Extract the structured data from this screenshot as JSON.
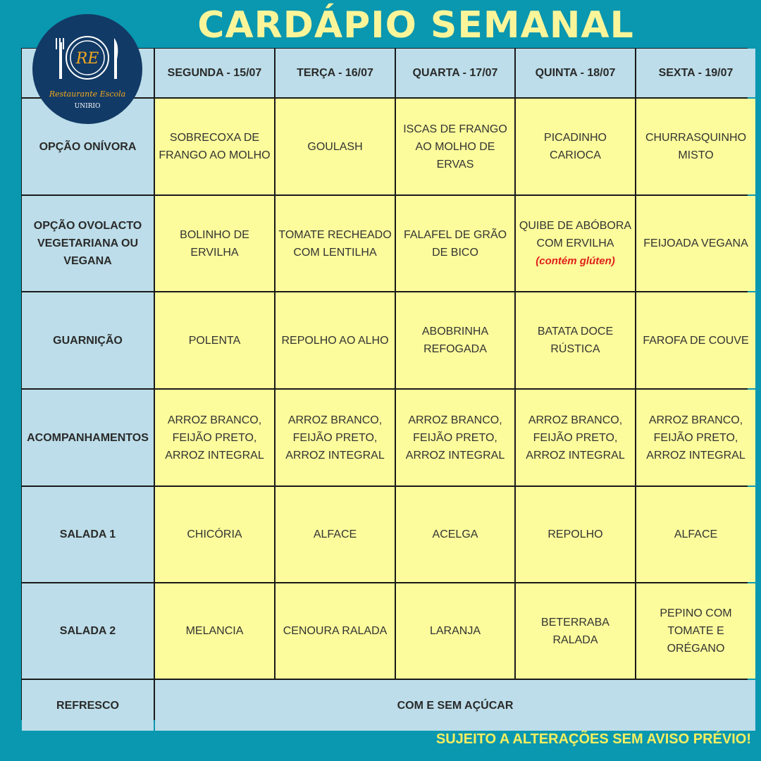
{
  "title": "CARDÁPIO SEMANAL",
  "logo": {
    "initials": "RE",
    "name": "Restaurante Escola",
    "org": "UNIRIO"
  },
  "days": [
    "SEGUNDA - 15/07",
    "TERÇA - 16/07",
    "QUARTA - 17/07",
    "QUINTA - 18/07",
    "SEXTA - 19/07"
  ],
  "rows": [
    {
      "label": "OPÇÃO ONÍVORA",
      "items": [
        "SOBRECOXA DE FRANGO AO MOLHO",
        "GOULASH",
        "ISCAS DE FRANGO AO MOLHO DE ERVAS",
        "PICADINHO CARIOCA",
        "CHURRASQUINHO MISTO"
      ]
    },
    {
      "label": "OPÇÃO OVOLACTO VEGETARIANA OU VEGANA",
      "items": [
        "BOLINHO DE ERVILHA",
        "TOMATE RECHEADO COM LENTILHA",
        "FALAFEL DE GRÃO DE BICO",
        "QUIBE DE ABÓBORA COM ERVILHA",
        "FEIJOADA VEGANA"
      ],
      "note": "(contém glúten)"
    },
    {
      "label": "GUARNIÇÃO",
      "items": [
        "POLENTA",
        "REPOLHO AO ALHO",
        "ABOBRINHA REFOGADA",
        "BATATA DOCE RÚSTICA",
        "FAROFA DE COUVE"
      ]
    },
    {
      "label": "ACOMPANHAMENTOS",
      "items": [
        "ARROZ BRANCO, FEIJÃO PRETO, ARROZ INTEGRAL",
        "ARROZ BRANCO, FEIJÃO PRETO, ARROZ INTEGRAL",
        "ARROZ BRANCO, FEIJÃO PRETO, ARROZ INTEGRAL",
        "ARROZ BRANCO, FEIJÃO PRETO, ARROZ INTEGRAL",
        "ARROZ BRANCO, FEIJÃO PRETO, ARROZ INTEGRAL"
      ]
    },
    {
      "label": "SALADA 1",
      "items": [
        "CHICÓRIA",
        "ALFACE",
        "ACELGA",
        "REPOLHO",
        "ALFACE"
      ]
    },
    {
      "label": "SALADA 2",
      "items": [
        "MELANCIA",
        "CENOURA RALADA",
        "LARANJA",
        "BETERRABA RALADA",
        "PEPINO COM TOMATE E ORÉGANO"
      ]
    }
  ],
  "refresco": {
    "label": "REFRESCO",
    "value": "COM E SEM AÇÚCAR"
  },
  "footer": "SUJEITO A ALTERAÇÕES SEM AVISO PRÉVIO!",
  "colors": {
    "background": "#0a97b0",
    "header": "#bcdde9",
    "cell": "#fcfc9c",
    "title": "#fbf59a",
    "note": "#e0201a"
  }
}
